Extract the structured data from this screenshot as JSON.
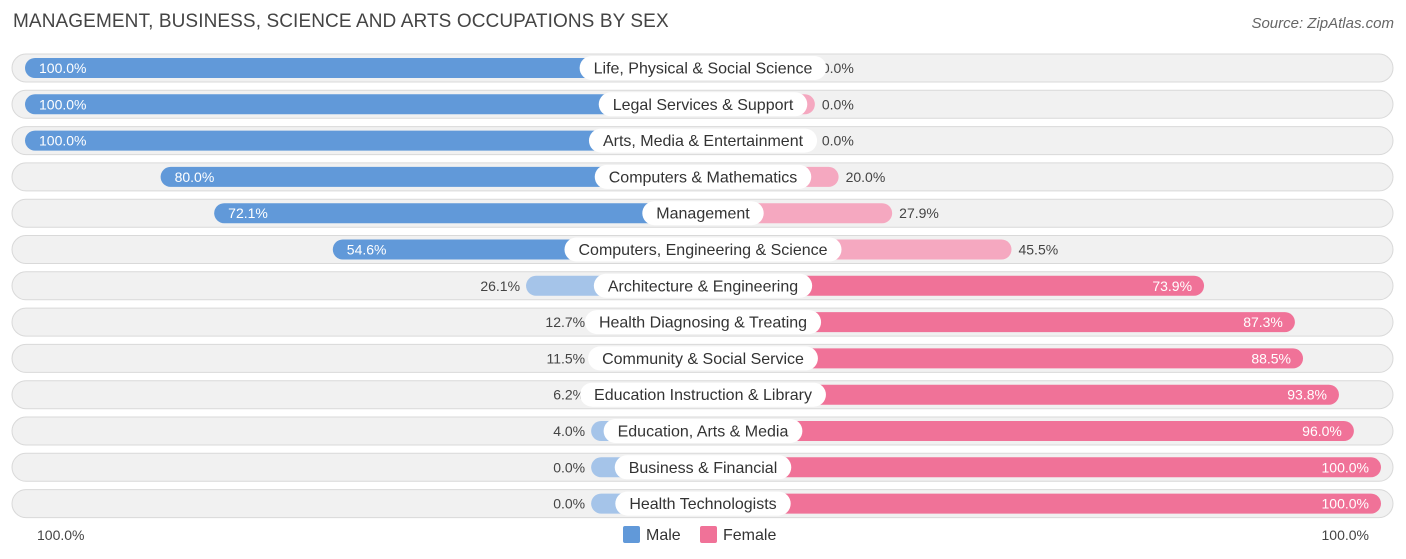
{
  "title": "MANAGEMENT, BUSINESS, SCIENCE AND ARTS OCCUPATIONS BY SEX",
  "source": "Source: ZipAtlas.com",
  "colors": {
    "male_dark": "#6199d9",
    "male_light": "#a5c4e9",
    "female_dark": "#f07298",
    "female_light": "#f5a8c0",
    "row_bg": "#f1f1f1",
    "row_border": "#d9d9d9"
  },
  "chart_data": {
    "type": "bar",
    "orientation": "horizontal-diverging",
    "title": "MANAGEMENT, BUSINESS, SCIENCE AND ARTS OCCUPATIONS BY SEX",
    "categories": [
      "Life, Physical & Social Science",
      "Legal Services & Support",
      "Arts, Media & Entertainment",
      "Computers & Mathematics",
      "Management",
      "Computers, Engineering & Science",
      "Architecture & Engineering",
      "Health Diagnosing & Treating",
      "Community & Social Service",
      "Education Instruction & Library",
      "Education, Arts & Media",
      "Business & Financial",
      "Health Technologists"
    ],
    "series": [
      {
        "name": "Male",
        "values": [
          100.0,
          100.0,
          100.0,
          80.0,
          72.1,
          54.6,
          26.1,
          12.7,
          11.5,
          6.2,
          4.0,
          0.0,
          0.0
        ],
        "labels": [
          "100.0%",
          "100.0%",
          "100.0%",
          "80.0%",
          "72.1%",
          "54.6%",
          "26.1%",
          "12.7%",
          "11.5%",
          "6.2%",
          "4.0%",
          "0.0%",
          "0.0%"
        ]
      },
      {
        "name": "Female",
        "values": [
          0.0,
          0.0,
          0.0,
          20.0,
          27.9,
          45.5,
          73.9,
          87.3,
          88.5,
          93.8,
          96.0,
          100.0,
          100.0
        ],
        "labels": [
          "0.0%",
          "0.0%",
          "0.0%",
          "20.0%",
          "27.9%",
          "45.5%",
          "73.9%",
          "87.3%",
          "88.5%",
          "93.8%",
          "96.0%",
          "100.0%",
          "100.0%"
        ]
      }
    ],
    "axis_left_label": "100.0%",
    "axis_right_label": "100.0%",
    "xlim": [
      -100,
      100
    ],
    "legend": [
      "Male",
      "Female"
    ],
    "legend_position": "bottom-center"
  }
}
